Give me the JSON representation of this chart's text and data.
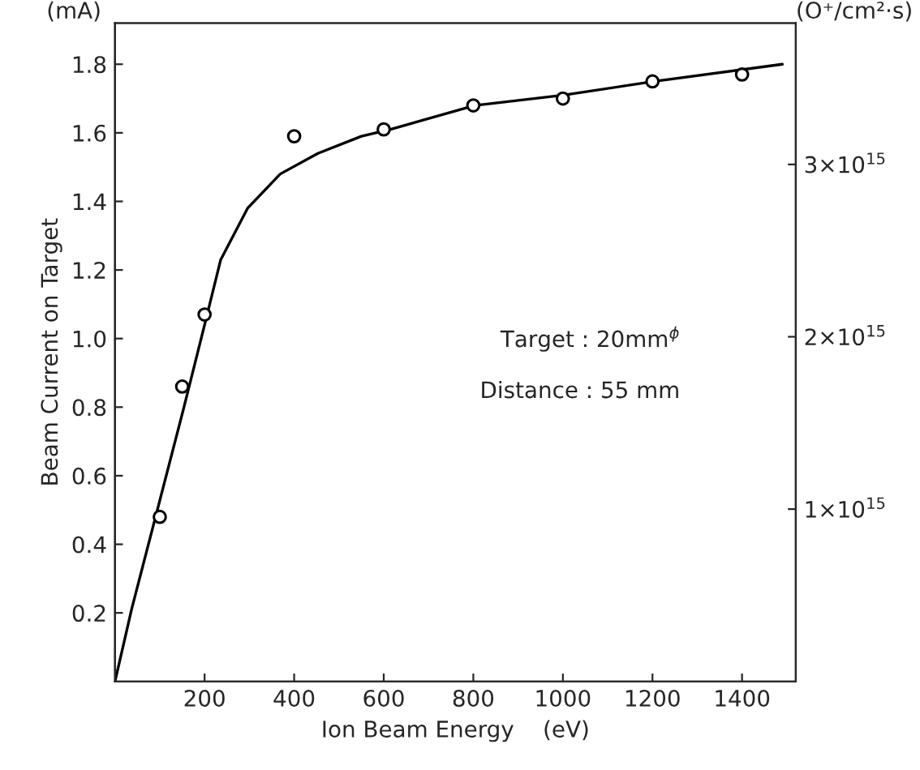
{
  "chart_data": {
    "type": "scatter",
    "xlabel": "Ion Beam Energy    (eV)",
    "ylabel": "Beam Current on Target",
    "y2label": "(O⁺/cm²·s)",
    "annotations": [
      "(mA)",
      "Target : 20mm$^{ϕ}$",
      "Distance : 55 mm"
    ],
    "xlim": [
      0,
      1520
    ],
    "xticks": [
      200,
      400,
      600,
      800,
      1000,
      1200,
      1400
    ],
    "ylim": [
      0,
      1.92
    ],
    "yticks": [
      0.2,
      0.4,
      0.6,
      0.8,
      {
        "value": 1,
        "label": "1.0"
      },
      1.2,
      1.4,
      1.6,
      1.8
    ],
    "y2lim": [
      0,
      3820000000000000.0
    ],
    "y2ticks": [
      {
        "value": 1000000000000000.0,
        "label": "1×10$^{15}$"
      },
      {
        "value": 2000000000000000.0,
        "label": "2×10$^{15}$"
      },
      {
        "value": 3000000000000000.0,
        "label": "3×10$^{15}$"
      }
    ],
    "grid": false,
    "legend": false,
    "series": [
      {
        "color": "#000000",
        "marker": "circle",
        "x": [
          100,
          150,
          200,
          400,
          600,
          800,
          1000,
          1200,
          1400
        ],
        "values": [
          0.48,
          0.86,
          1.07,
          1.59,
          1.61,
          1.68,
          1.7,
          1.75,
          1.77
        ]
      },
      {
        "type": "line",
        "color": "#000000",
        "marker": "none",
        "line_style": "solid",
        "x": [
          0,
          37,
          152,
          200,
          236,
          296,
          369,
          453,
          550,
          615,
          803,
          1001,
          1204,
          1490
        ],
        "values": [
          0,
          0.21,
          0.79,
          1.04,
          1.23,
          1.38,
          1.48,
          1.54,
          1.59,
          1.61,
          1.68,
          1.71,
          1.75,
          1.8
        ]
      }
    ]
  }
}
